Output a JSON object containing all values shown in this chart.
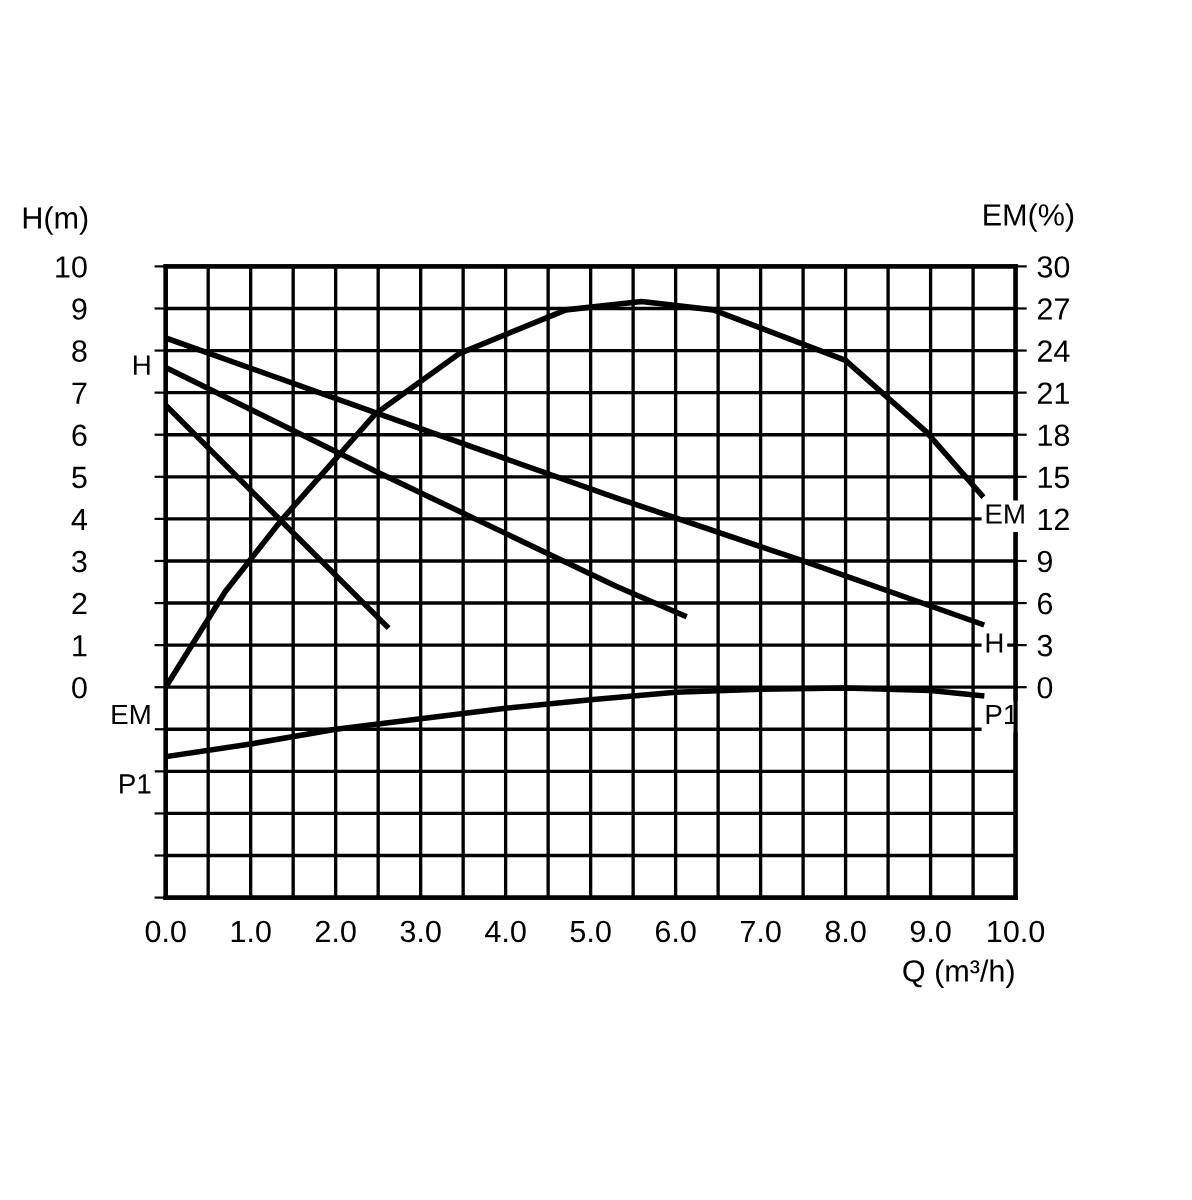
{
  "chart_data": {
    "type": "line",
    "xlabel": "Q (m³/h)",
    "ylabel": "H(m)",
    "y2label": "EM(%)",
    "xlim": [
      0,
      10
    ],
    "ylim": [
      -5,
      10
    ],
    "y2lim": [
      -15,
      30
    ],
    "xticks": [
      {
        "value": 0,
        "label": "0.0"
      },
      {
        "value": 0.5,
        "label": null
      },
      {
        "value": 1,
        "label": "1.0"
      },
      {
        "value": 1.5,
        "label": null
      },
      {
        "value": 2,
        "label": "2.0"
      },
      {
        "value": 2.5,
        "label": null
      },
      {
        "value": 3,
        "label": "3.0"
      },
      {
        "value": 3.5,
        "label": null
      },
      {
        "value": 4,
        "label": "4.0"
      },
      {
        "value": 4.5,
        "label": null
      },
      {
        "value": 5,
        "label": "5.0"
      },
      {
        "value": 5.5,
        "label": null
      },
      {
        "value": 6,
        "label": "6.0"
      },
      {
        "value": 6.5,
        "label": null
      },
      {
        "value": 7,
        "label": "7.0"
      },
      {
        "value": 7.5,
        "label": null
      },
      {
        "value": 8,
        "label": "8.0"
      },
      {
        "value": 8.5,
        "label": null
      },
      {
        "value": 9,
        "label": "9.0"
      },
      {
        "value": 9.5,
        "label": null
      },
      {
        "value": 10,
        "label": "10.0"
      }
    ],
    "yticks": [
      {
        "value": -5,
        "label": null
      },
      {
        "value": -4,
        "label": null
      },
      {
        "value": -3,
        "label": null
      },
      {
        "value": -2,
        "label": null
      },
      {
        "value": -1,
        "label": null
      },
      0,
      1,
      2,
      3,
      4,
      5,
      6,
      7,
      8,
      9,
      10
    ],
    "y2ticks": [
      0,
      3,
      6,
      9,
      12,
      15,
      18,
      21,
      24,
      27,
      30
    ],
    "grid": true,
    "legend": false,
    "marker": "none",
    "line_style": "solid",
    "series": [
      {
        "name": "H",
        "color": "#000000",
        "x": [
          0,
          2.5,
          5.3,
          7.5,
          9.6
        ],
        "values": [
          8.3,
          6.5,
          4.5,
          3.0,
          1.5
        ]
      },
      {
        "color": "#000000",
        "x": [
          0,
          2.5,
          5.3,
          6.1
        ],
        "values": [
          7.6,
          5.1,
          2.4,
          1.7
        ]
      },
      {
        "color": "#000000",
        "x": [
          0,
          1.36,
          2.6
        ],
        "values": [
          6.7,
          3.95,
          1.45
        ]
      },
      {
        "name": "EM",
        "color": "#000000",
        "axis": "y2",
        "x": [
          0,
          0.7,
          1.36,
          2.47,
          3.46,
          4.71,
          5.6,
          6.44,
          8.0,
          8.95,
          9.6
        ],
        "values": [
          0,
          6.8,
          11.9,
          19.5,
          23.8,
          26.9,
          27.5,
          26.9,
          23.3,
          18.2,
          13.7
        ]
      },
      {
        "name": "P1",
        "color": "#000000",
        "x": [
          0,
          1,
          2,
          3,
          4,
          5,
          6,
          7,
          8,
          9,
          9.6
        ],
        "values": [
          -1.65,
          -1.35,
          -1.0,
          -0.75,
          -0.5,
          -0.3,
          -0.12,
          -0.05,
          -0.02,
          -0.08,
          -0.2
        ]
      }
    ]
  }
}
